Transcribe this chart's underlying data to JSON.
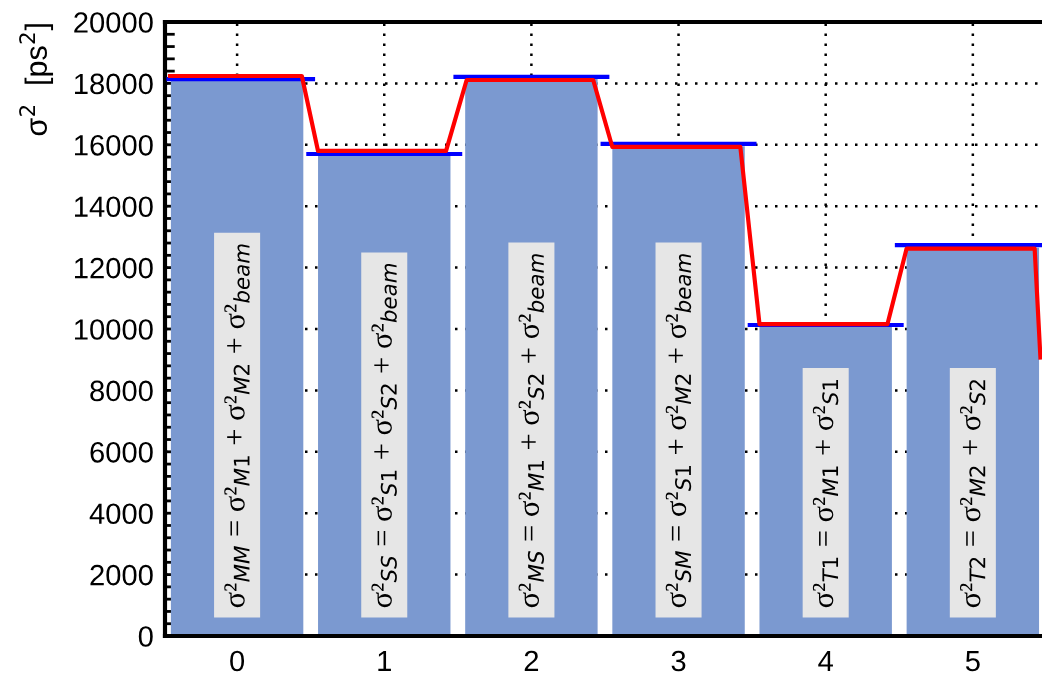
{
  "chart_data": {
    "type": "bar",
    "ylabel": "σ$^{2}$  [ps$^{2}$]",
    "series": [
      {
        "color": "#7b99d0",
        "x": [
          0,
          1,
          2,
          3,
          4,
          5
        ],
        "values": [
          18150,
          15750,
          18150,
          15950,
          10150,
          12650
        ]
      },
      {
        "type": "line",
        "color": "#0000ff",
        "x": [
          -0.48,
          0.53
        ],
        "values": [
          18140,
          18140
        ]
      },
      {
        "type": "line",
        "color": "#0000ff",
        "x": [
          0.47,
          1.53
        ],
        "values": [
          15700,
          15700
        ]
      },
      {
        "type": "line",
        "color": "#0000ff",
        "x": [
          1.47,
          2.53
        ],
        "values": [
          18210,
          18210
        ]
      },
      {
        "type": "line",
        "color": "#0000ff",
        "x": [
          2.47,
          3.53
        ],
        "values": [
          16030,
          16030
        ]
      },
      {
        "type": "line",
        "color": "#0000ff",
        "x": [
          3.47,
          4.53
        ],
        "values": [
          10130,
          10130
        ]
      },
      {
        "type": "line",
        "color": "#0000ff",
        "x": [
          4.47,
          5.47
        ],
        "values": [
          12730,
          12730
        ]
      },
      {
        "type": "line",
        "color": "#ff0000",
        "x": [
          -0.47,
          0.44,
          0.55,
          1.42,
          1.56,
          2.42,
          2.55,
          3.42,
          3.55,
          4.42,
          4.55,
          5.42,
          5.46
        ],
        "values": [
          18240,
          18240,
          15800,
          15800,
          18110,
          18110,
          15930,
          15930,
          10160,
          10160,
          12620,
          12620,
          9000
        ]
      }
    ],
    "xlim": [
      -0.49,
      5.47
    ],
    "xticks": [
      0,
      1,
      2,
      3,
      4,
      5
    ],
    "ylim": [
      0,
      20000
    ],
    "yticks": [
      0,
      2000,
      4000,
      6000,
      8000,
      10000,
      12000,
      14000,
      16000,
      18000,
      20000
    ],
    "grid": true,
    "annotations": [
      "σ²$_{MM}$ = σ²$_{M1}$ + σ²$_{M2}$ + σ²$_{beam}$",
      "σ²$_{SS}$ = σ²$_{S1}$ + σ²$_{S2}$ + σ²$_{beam}$",
      "σ²$_{MS}$ = σ²$_{M1}$ + σ²$_{S2}$ + σ²$_{beam}$",
      "σ²$_{SM}$ = σ²$_{S1}$ + σ²$_{M2}$ + σ²$_{beam}$",
      "σ²$_{T1}$ = σ²$_{M1}$ + σ²$_{S1}$",
      "σ²$_{T2}$ = σ²$_{M2}$ + σ²$_{S2}$"
    ]
  }
}
